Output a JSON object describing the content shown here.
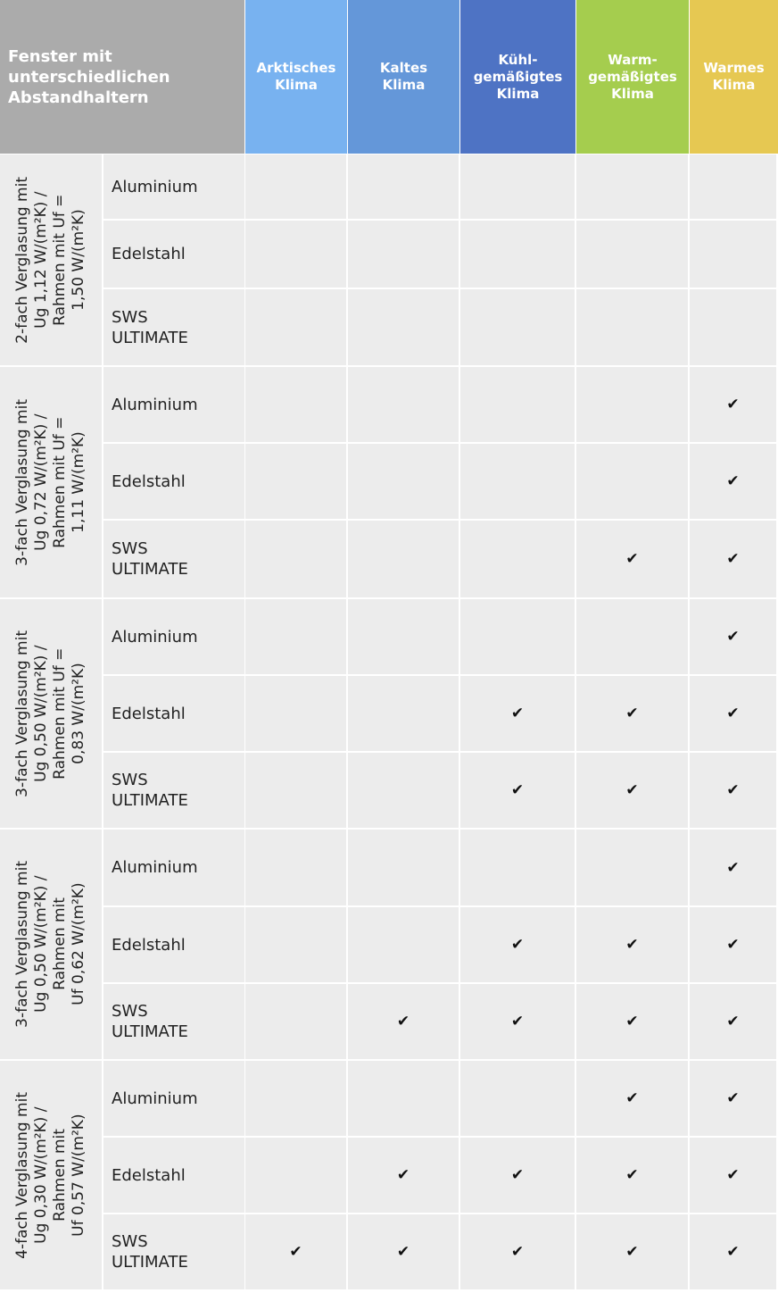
{
  "header": {
    "title": "Fenster mit\nunterschiedlichen\nAbstandhaltern",
    "columns": [
      {
        "label": "Arktisches\nKlima",
        "color": "#78b2f0"
      },
      {
        "label": "Kaltes\nKlima",
        "color": "#6497d9"
      },
      {
        "label": "Kühl-\ngemäßigtes\nKlima",
        "color": "#4e73c4"
      },
      {
        "label": "Warm-\ngemäßigtes\nKlima",
        "color": "#a5cd4e"
      },
      {
        "label": "Warmes\nKlima",
        "color": "#e6c852"
      }
    ]
  },
  "check_icon": "checkmark",
  "groups": [
    {
      "label": "2-fach Verglasung mit\nUg 1,12 W/(m²K) /\nRahmen mit Uf =\n1,50 W/(m²K)",
      "rows": [
        {
          "type": "Aluminium",
          "checks": [
            false,
            false,
            false,
            false,
            false
          ]
        },
        {
          "type": "Edelstahl",
          "checks": [
            false,
            false,
            false,
            false,
            false
          ]
        },
        {
          "type": "SWS\nULTIMATE",
          "checks": [
            false,
            false,
            false,
            false,
            false
          ]
        }
      ]
    },
    {
      "label": "3-fach Verglasung mit\nUg 0,72 W/(m²K) /\nRahmen mit Uf =\n1,11 W/(m²K)",
      "rows": [
        {
          "type": "Aluminium",
          "checks": [
            false,
            false,
            false,
            false,
            true
          ]
        },
        {
          "type": "Edelstahl",
          "checks": [
            false,
            false,
            false,
            false,
            true
          ]
        },
        {
          "type": "SWS\nULTIMATE",
          "checks": [
            false,
            false,
            false,
            true,
            true
          ]
        }
      ]
    },
    {
      "label": "3-fach Verglasung mit\nUg 0,50 W/(m²K) /\nRahmen mit Uf =\n0,83 W/(m²K)",
      "rows": [
        {
          "type": "Aluminium",
          "checks": [
            false,
            false,
            false,
            false,
            true
          ]
        },
        {
          "type": "Edelstahl",
          "checks": [
            false,
            false,
            true,
            true,
            true
          ]
        },
        {
          "type": "SWS\nULTIMATE",
          "checks": [
            false,
            false,
            true,
            true,
            true
          ]
        }
      ]
    },
    {
      "label": "3-fach Verglasung mit\nUg 0,50 W/(m²K) /\nRahmen mit\nUf 0,62 W/(m²K)",
      "rows": [
        {
          "type": "Aluminium",
          "checks": [
            false,
            false,
            false,
            false,
            true
          ]
        },
        {
          "type": "Edelstahl",
          "checks": [
            false,
            false,
            true,
            true,
            true
          ]
        },
        {
          "type": "SWS\nULTIMATE",
          "checks": [
            false,
            true,
            true,
            true,
            true
          ]
        }
      ]
    },
    {
      "label": "4-fach Verglasung mit\nUg 0,30 W/(m²K) /\nRahmen mit\nUf 0,57 W/(m²K)",
      "rows": [
        {
          "type": "Aluminium",
          "checks": [
            false,
            false,
            false,
            true,
            true
          ]
        },
        {
          "type": "Edelstahl",
          "checks": [
            false,
            true,
            true,
            true,
            true
          ]
        },
        {
          "type": "SWS\nULTIMATE",
          "checks": [
            true,
            true,
            true,
            true,
            true
          ]
        }
      ]
    }
  ]
}
